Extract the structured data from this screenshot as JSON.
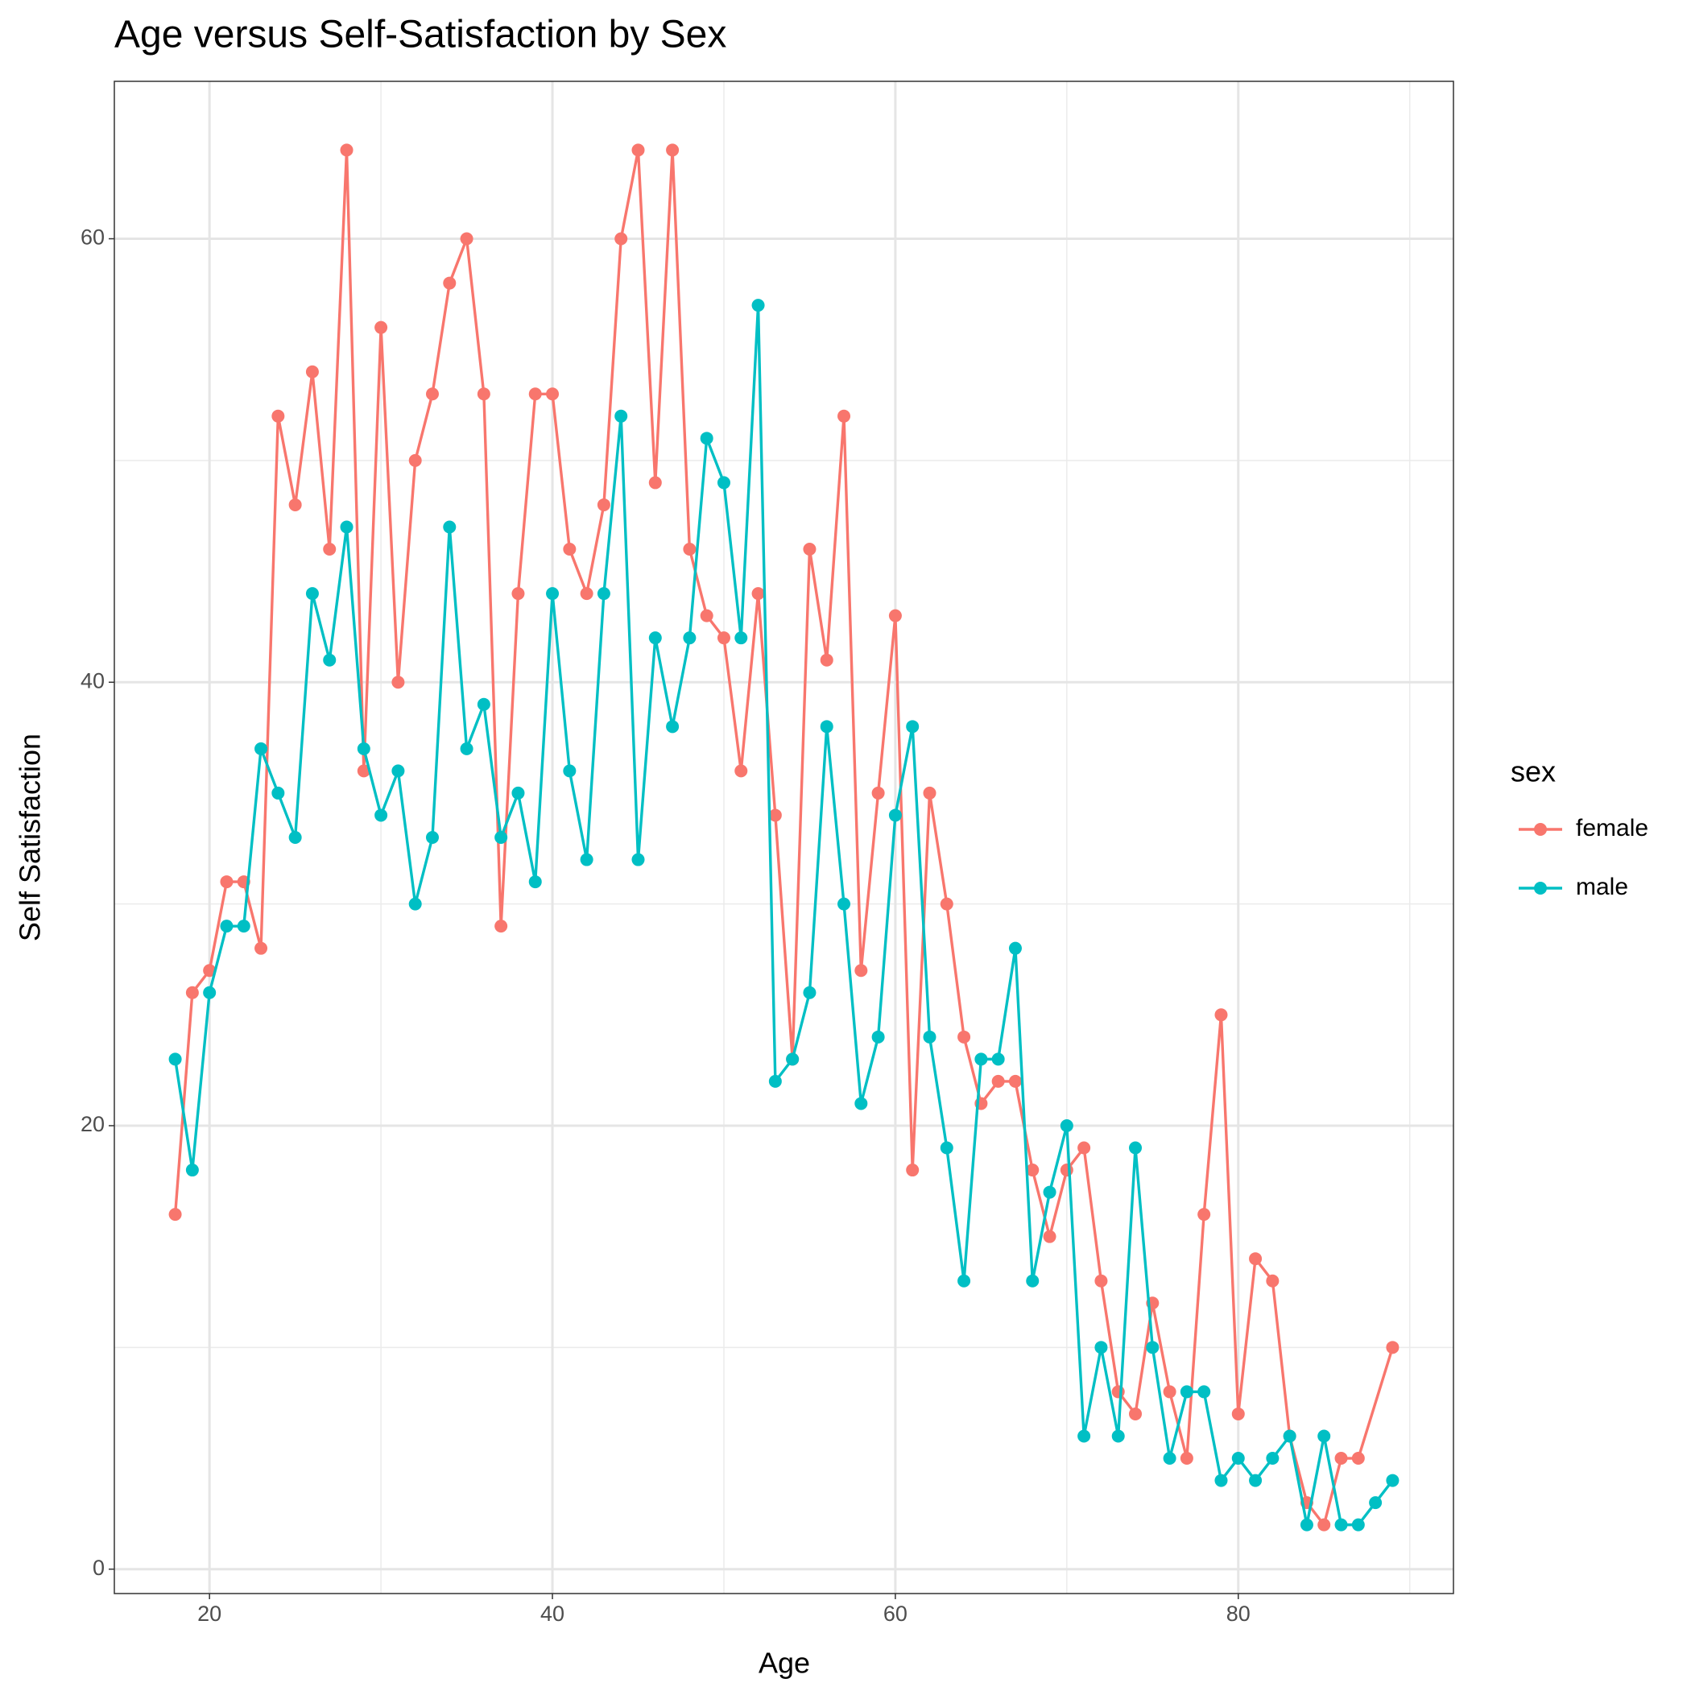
{
  "chart_data": {
    "type": "line",
    "title": "Age versus Self-Satisfaction by Sex",
    "x_label": "Age",
    "y_label": "Self Satisfaction",
    "legend_title": "sex",
    "legend_position": "right",
    "xlim": [
      14.45,
      92.55
    ],
    "ylim": [
      -1.1,
      67.1
    ],
    "xticks": [
      20,
      40,
      60,
      80
    ],
    "yticks": [
      0,
      20,
      40,
      60
    ],
    "x_minor_grid": [
      30,
      50,
      70,
      90
    ],
    "y_minor_grid": [
      10,
      30,
      50
    ],
    "grid": true,
    "series": [
      {
        "name": "female",
        "color": "#F8766D",
        "x": [
          18,
          19,
          20,
          21,
          22,
          23,
          24,
          25,
          26,
          27,
          28,
          29,
          30,
          31,
          32,
          33,
          34,
          35,
          36,
          37,
          38,
          39,
          40,
          41,
          42,
          43,
          44,
          45,
          46,
          47,
          48,
          49,
          50,
          51,
          52,
          53,
          54,
          55,
          56,
          57,
          58,
          59,
          60,
          61,
          62,
          63,
          64,
          65,
          66,
          67,
          68,
          69,
          70,
          71,
          72,
          73,
          74,
          75,
          76,
          77,
          78,
          79,
          80,
          81,
          82,
          83,
          84,
          85,
          86,
          87,
          89
        ],
        "values": [
          16,
          26,
          27,
          31,
          31,
          28,
          52,
          48,
          54,
          46,
          64,
          36,
          56,
          40,
          50,
          53,
          58,
          60,
          53,
          29,
          44,
          53,
          53,
          46,
          44,
          48,
          60,
          64,
          49,
          64,
          46,
          43,
          42,
          36,
          44,
          34,
          23,
          46,
          41,
          52,
          27,
          35,
          43,
          18,
          35,
          30,
          24,
          21,
          22,
          22,
          18,
          15,
          18,
          19,
          13,
          8,
          7,
          12,
          8,
          5,
          16,
          25,
          7,
          14,
          13,
          6,
          3,
          2,
          5,
          5,
          10
        ]
      },
      {
        "name": "male",
        "color": "#00BFC4",
        "x": [
          18,
          19,
          20,
          21,
          22,
          23,
          24,
          25,
          26,
          27,
          28,
          29,
          30,
          31,
          32,
          33,
          34,
          35,
          36,
          37,
          38,
          39,
          40,
          41,
          42,
          43,
          44,
          45,
          46,
          47,
          48,
          49,
          50,
          51,
          52,
          53,
          54,
          55,
          56,
          57,
          58,
          59,
          60,
          61,
          62,
          63,
          64,
          65,
          66,
          67,
          68,
          69,
          70,
          71,
          72,
          73,
          74,
          75,
          76,
          77,
          78,
          79,
          80,
          81,
          82,
          83,
          84,
          85,
          86,
          87,
          88,
          89
        ],
        "values": [
          23,
          18,
          26,
          29,
          29,
          37,
          35,
          33,
          44,
          41,
          47,
          37,
          34,
          36,
          30,
          33,
          47,
          37,
          39,
          33,
          35,
          31,
          44,
          36,
          32,
          44,
          52,
          32,
          42,
          38,
          42,
          51,
          49,
          42,
          57,
          22,
          23,
          26,
          38,
          30,
          21,
          24,
          34,
          38,
          24,
          19,
          13,
          23,
          23,
          28,
          13,
          17,
          20,
          6,
          10,
          6,
          19,
          10,
          5,
          8,
          8,
          4,
          5,
          4,
          5,
          6,
          2,
          6,
          2,
          2,
          3,
          4
        ]
      }
    ]
  }
}
